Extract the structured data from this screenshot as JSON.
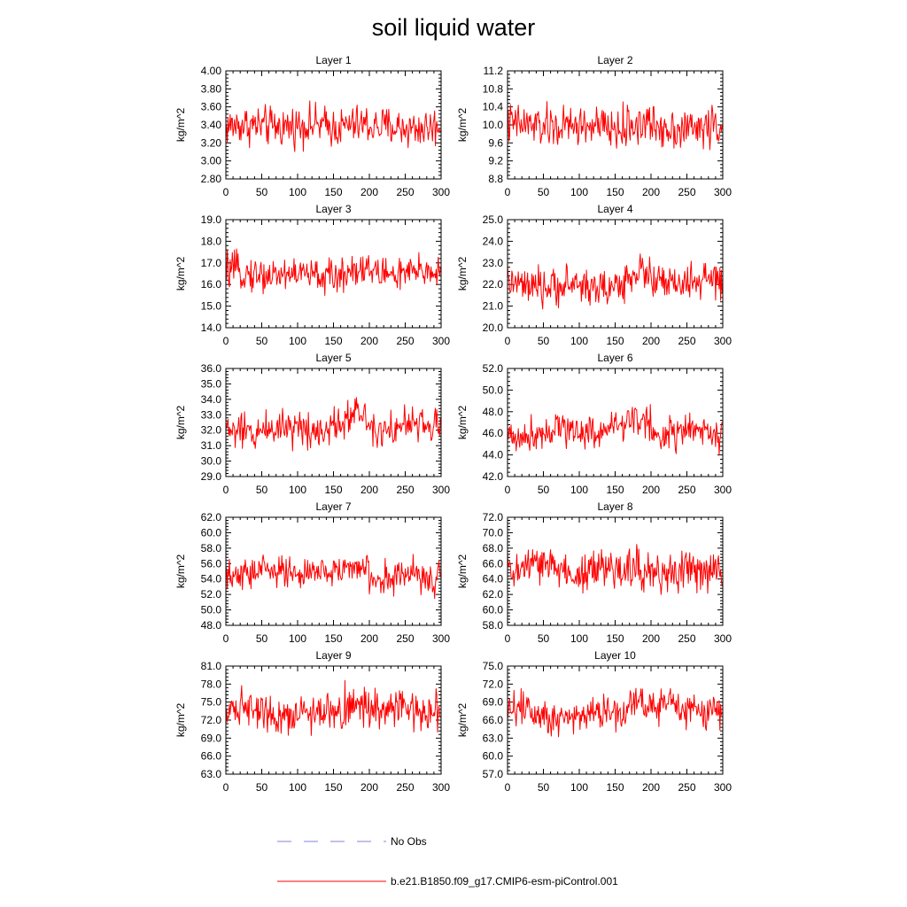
{
  "title": "soil liquid water",
  "legend": {
    "entries": [
      {
        "label": "No Obs",
        "color": "#8080e0",
        "style": "dashed"
      },
      {
        "label": "b.e21.B1850.f09_g17.CMIP6-esm-piControl.001",
        "color": "#ff0000",
        "style": "solid"
      }
    ]
  },
  "chart_data": [
    {
      "type": "line",
      "title": "Layer 1",
      "ylabel": "kg/m^2",
      "xlim": [
        0,
        300
      ],
      "ylim": [
        2.8,
        4.0
      ],
      "xticks": [
        "0",
        "50",
        "100",
        "150",
        "200",
        "250",
        "300"
      ],
      "yticks": [
        "2.80",
        "3.00",
        "3.20",
        "3.40",
        "3.60",
        "3.80",
        "4.00"
      ],
      "mean": 3.38,
      "amplitude": 0.18,
      "low_freq": 0.04,
      "series": [
        {
          "name": "b.e21.B1850.f09_g17.CMIP6-esm-piControl.001",
          "color": "#ff0000",
          "n_points": 300
        }
      ]
    },
    {
      "type": "line",
      "title": "Layer 2",
      "ylabel": "kg/m^2",
      "xlim": [
        0,
        300
      ],
      "ylim": [
        8.8,
        11.2
      ],
      "xticks": [
        "0",
        "50",
        "100",
        "150",
        "200",
        "250",
        "300"
      ],
      "yticks": [
        "8.8",
        "9.2",
        "9.6",
        "10.0",
        "10.4",
        "10.8",
        "11.2"
      ],
      "mean": 9.95,
      "amplitude": 0.38,
      "low_freq": 0.1,
      "series": [
        {
          "name": "b.e21.B1850.f09_g17.CMIP6-esm-piControl.001",
          "color": "#ff0000",
          "n_points": 300
        }
      ]
    },
    {
      "type": "line",
      "title": "Layer 3",
      "ylabel": "kg/m^2",
      "xlim": [
        0,
        300
      ],
      "ylim": [
        14.0,
        19.0
      ],
      "xticks": [
        "0",
        "50",
        "100",
        "150",
        "200",
        "250",
        "300"
      ],
      "yticks": [
        "14.0",
        "15.0",
        "16.0",
        "17.0",
        "18.0",
        "19.0"
      ],
      "mean": 16.5,
      "amplitude": 0.65,
      "low_freq": 0.25,
      "series": [
        {
          "name": "b.e21.B1850.f09_g17.CMIP6-esm-piControl.001",
          "color": "#ff0000",
          "n_points": 300
        }
      ]
    },
    {
      "type": "line",
      "title": "Layer 4",
      "ylabel": "kg/m^2",
      "xlim": [
        0,
        300
      ],
      "ylim": [
        20.0,
        25.0
      ],
      "xticks": [
        "0",
        "50",
        "100",
        "150",
        "200",
        "250",
        "300"
      ],
      "yticks": [
        "20.0",
        "21.0",
        "22.0",
        "23.0",
        "24.0",
        "25.0"
      ],
      "mean": 22.0,
      "amplitude": 0.7,
      "low_freq": 0.4,
      "series": [
        {
          "name": "b.e21.B1850.f09_g17.CMIP6-esm-piControl.001",
          "color": "#ff0000",
          "n_points": 300
        }
      ]
    },
    {
      "type": "line",
      "title": "Layer 5",
      "ylabel": "kg/m^2",
      "xlim": [
        0,
        300
      ],
      "ylim": [
        29.0,
        36.0
      ],
      "xticks": [
        "0",
        "50",
        "100",
        "150",
        "200",
        "250",
        "300"
      ],
      "yticks": [
        "29.0",
        "30.0",
        "31.0",
        "32.0",
        "33.0",
        "34.0",
        "35.0",
        "36.0"
      ],
      "mean": 32.2,
      "amplitude": 1.0,
      "low_freq": 0.6,
      "series": [
        {
          "name": "b.e21.B1850.f09_g17.CMIP6-esm-piControl.001",
          "color": "#ff0000",
          "n_points": 300
        }
      ]
    },
    {
      "type": "line",
      "title": "Layer 6",
      "ylabel": "kg/m^2",
      "xlim": [
        0,
        300
      ],
      "ylim": [
        42.0,
        52.0
      ],
      "xticks": [
        "0",
        "50",
        "100",
        "150",
        "200",
        "250",
        "300"
      ],
      "yticks": [
        "42.0",
        "44.0",
        "46.0",
        "48.0",
        "50.0",
        "52.0"
      ],
      "mean": 46.2,
      "amplitude": 1.3,
      "low_freq": 0.9,
      "series": [
        {
          "name": "b.e21.B1850.f09_g17.CMIP6-esm-piControl.001",
          "color": "#ff0000",
          "n_points": 300
        }
      ]
    },
    {
      "type": "line",
      "title": "Layer 7",
      "ylabel": "kg/m^2",
      "xlim": [
        0,
        300
      ],
      "ylim": [
        48.0,
        62.0
      ],
      "xticks": [
        "0",
        "50",
        "100",
        "150",
        "200",
        "250",
        "300"
      ],
      "yticks": [
        "48.0",
        "50.0",
        "52.0",
        "54.0",
        "56.0",
        "58.0",
        "60.0",
        "62.0"
      ],
      "mean": 54.6,
      "amplitude": 1.7,
      "low_freq": 1.2,
      "series": [
        {
          "name": "b.e21.B1850.f09_g17.CMIP6-esm-piControl.001",
          "color": "#ff0000",
          "n_points": 300
        }
      ]
    },
    {
      "type": "line",
      "title": "Layer 8",
      "ylabel": "kg/m^2",
      "xlim": [
        0,
        300
      ],
      "ylim": [
        58.0,
        72.0
      ],
      "xticks": [
        "0",
        "50",
        "100",
        "150",
        "200",
        "250",
        "300"
      ],
      "yticks": [
        "58.0",
        "60.0",
        "62.0",
        "64.0",
        "66.0",
        "68.0",
        "70.0",
        "72.0"
      ],
      "mean": 65.0,
      "amplitude": 2.2,
      "low_freq": 1.4,
      "series": [
        {
          "name": "b.e21.B1850.f09_g17.CMIP6-esm-piControl.001",
          "color": "#ff0000",
          "n_points": 300
        }
      ]
    },
    {
      "type": "line",
      "title": "Layer 9",
      "ylabel": "kg/m^2",
      "xlim": [
        0,
        300
      ],
      "ylim": [
        63.0,
        81.0
      ],
      "xticks": [
        "0",
        "50",
        "100",
        "150",
        "200",
        "250",
        "300"
      ],
      "yticks": [
        "63.0",
        "66.0",
        "69.0",
        "72.0",
        "75.0",
        "78.0",
        "81.0"
      ],
      "mean": 73.5,
      "amplitude": 2.6,
      "low_freq": 1.7,
      "series": [
        {
          "name": "b.e21.B1850.f09_g17.CMIP6-esm-piControl.001",
          "color": "#ff0000",
          "n_points": 300
        }
      ]
    },
    {
      "type": "line",
      "title": "Layer 10",
      "ylabel": "kg/m^2",
      "xlim": [
        0,
        300
      ],
      "ylim": [
        57.0,
        75.0
      ],
      "xticks": [
        "0",
        "50",
        "100",
        "150",
        "200",
        "250",
        "300"
      ],
      "yticks": [
        "57.0",
        "60.0",
        "63.0",
        "66.0",
        "69.0",
        "72.0",
        "75.0"
      ],
      "mean": 67.5,
      "amplitude": 2.6,
      "low_freq": 1.7,
      "series": [
        {
          "name": "b.e21.B1850.f09_g17.CMIP6-esm-piControl.001",
          "color": "#ff0000",
          "n_points": 300
        }
      ]
    }
  ]
}
